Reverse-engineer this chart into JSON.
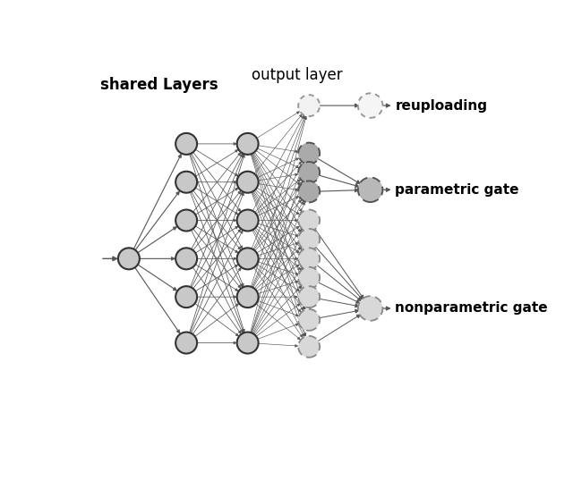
{
  "title": "output layer",
  "shared_layers_label": "shared Layers",
  "background_color": "#ffffff",
  "node_color_input": "#c8c8c8",
  "node_color_hidden1": "#c8c8c8",
  "node_color_hidden2": "#c8c8c8",
  "node_color_out_dotted": "#f2f2f2",
  "node_color_out_dark": "#aaaaaa",
  "node_color_out_light": "#d8d8d8",
  "node_color_class_reup": "#f5f5f5",
  "node_color_class_param": "#b8b8b8",
  "node_color_class_nonparam": "#d8d8d8",
  "edge_color": "#555555",
  "labels": [
    "reuploading",
    "parametric gate",
    "nonparametric gate"
  ],
  "label_fontsize": 11,
  "title_fontsize": 12,
  "shared_label_fontsize": 12,
  "node_r": 0.28
}
